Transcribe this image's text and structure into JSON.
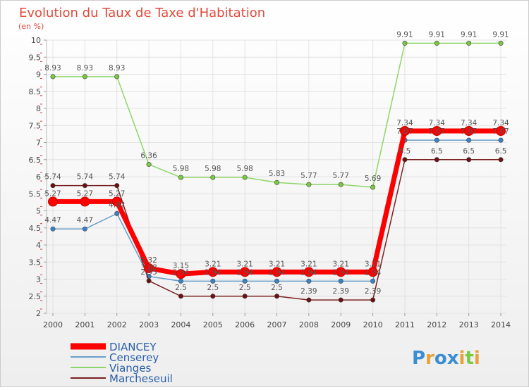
{
  "chart_data": {
    "type": "line",
    "title": "Evolution du Taux de Taxe d'Habitation",
    "subtitle": "(en %)",
    "x": [
      "2000",
      "2001",
      "2002",
      "2003",
      "2004",
      "2005",
      "2006",
      "2007",
      "2008",
      "2009",
      "2010",
      "2011",
      "2012",
      "2013",
      "2014"
    ],
    "ylim": [
      2,
      10
    ],
    "yticks": [
      "2",
      "2.5",
      "3",
      "3.5",
      "4",
      "4.5",
      "5",
      "5.5",
      "6",
      "6.5",
      "7",
      "7.5",
      "8",
      "8.5",
      "9",
      "9.5",
      "10"
    ],
    "grid": true,
    "legend_position": "bottom-left",
    "series": [
      {
        "name": "DIANCEY",
        "color": "#ff0000",
        "point_color": "#ff0000",
        "values": [
          5.27,
          5.27,
          5.27,
          3.32,
          3.15,
          3.21,
          3.21,
          3.21,
          3.21,
          3.21,
          3.21,
          7.34,
          7.34,
          7.34,
          7.34
        ]
      },
      {
        "name": "Censerey",
        "color": "#6a9fc8",
        "point_color": "#3a82c4",
        "values": [
          4.47,
          4.47,
          4.92,
          3.08,
          2.94,
          2.94,
          2.94,
          2.94,
          2.94,
          2.94,
          2.94,
          7.07,
          7.07,
          7.07,
          7.07
        ]
      },
      {
        "name": "Vianges",
        "color": "#8fd66a",
        "point_color": "#7ac943",
        "values": [
          8.93,
          8.93,
          8.93,
          6.36,
          5.98,
          5.98,
          5.98,
          5.83,
          5.77,
          5.77,
          5.69,
          9.91,
          9.91,
          9.91,
          9.91
        ]
      },
      {
        "name": "Marcheseuil",
        "color": "#7a2020",
        "point_color": "#6b1010",
        "values": [
          5.74,
          5.74,
          5.74,
          2.95,
          2.5,
          2.5,
          2.5,
          2.5,
          2.39,
          2.39,
          2.39,
          6.5,
          6.5,
          6.5,
          6.5
        ]
      }
    ],
    "value_labels": {
      "DIANCEY": [
        "5.27",
        "5.27",
        "5.27",
        "3.32",
        "3.15",
        "3.21",
        "3.21",
        "3.21",
        "3.21",
        "3.21",
        "3.21",
        "7.34",
        "7.34",
        "7.34",
        "7.34"
      ],
      "Censerey": [
        "4.47",
        "4.47",
        "4.92",
        "3.08",
        "2.94",
        "2.94",
        "2.94",
        "2.94",
        "2.94",
        "2.94",
        "2.94",
        "7.07",
        "7.07",
        "7.07",
        "7.07"
      ],
      "Vianges": [
        "8.93",
        "8.93",
        "8.93",
        "6.36",
        "5.98",
        "5.98",
        "5.98",
        "5.83",
        "5.77",
        "5.77",
        "5.69",
        "9.91",
        "9.91",
        "9.91",
        "9.91"
      ],
      "Marcheseuil": [
        "5.74",
        "5.74",
        "5.74",
        "2.95",
        "2.5",
        "2.5",
        "2.5",
        "2.5",
        "2.39",
        "2.39",
        "2.39",
        "6.5",
        "6.5",
        "6.5",
        "6.5"
      ]
    }
  },
  "brand": {
    "letters": [
      "P",
      "r",
      "o",
      "x",
      "i",
      "t",
      "i"
    ],
    "colors": [
      "#3b8fd1",
      "#e8a13a",
      "#3b8fd1",
      "#3b8fd1",
      "#e8a13a",
      "#7ac943",
      "#e8a13a"
    ]
  }
}
